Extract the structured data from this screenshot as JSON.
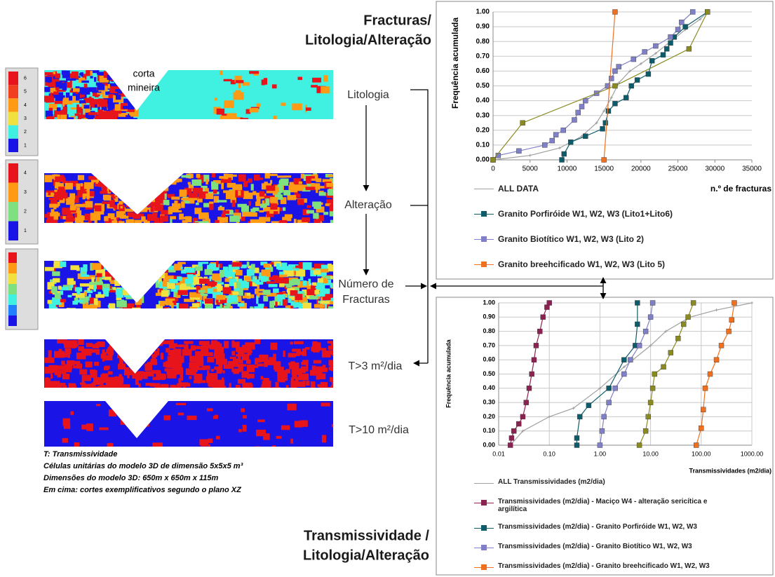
{
  "figure": {
    "title_top": [
      "Fracturas/",
      "Litologia/Alteração"
    ],
    "title_bottom": [
      "Transmissividade /",
      "Litologia/Alteração"
    ],
    "open_pit_label": [
      "corta",
      "mineira"
    ],
    "section_labels": [
      [
        "Litologia"
      ],
      [
        "Alteração"
      ],
      [
        "Número de",
        "Fracturas"
      ],
      [
        "T>3 m²/dia"
      ],
      [
        "T>10 m²/dia"
      ]
    ],
    "colorbar_labels": [
      [
        "6",
        "5",
        "4",
        "3",
        "2",
        "1"
      ],
      [
        "4",
        "3",
        "2",
        "1"
      ]
    ],
    "notes": [
      "T: Transmissividade",
      "Células unitárias do modelo 3D de dimensão 5x5x5 m³",
      "Dimensões do modelo 3D: 650m x 650m x 115m",
      "Em cima: cortes exemplificativos segundo o plano XZ"
    ]
  },
  "chart_data": [
    {
      "type": "line",
      "x_label": "n.º de fracturas",
      "y_label": "Frequência acumulada",
      "xlim": [
        0,
        35000
      ],
      "xticks": [
        0,
        5000,
        10000,
        15000,
        20000,
        25000,
        30000,
        35000
      ],
      "ylim": [
        0,
        1
      ],
      "yticks": [
        {
          "value": 0,
          "label": "0.00"
        },
        {
          "value": 0.1,
          "label": "0.10"
        },
        {
          "value": 0.2,
          "label": "0.20"
        },
        {
          "value": 0.3,
          "label": "0.30"
        },
        {
          "value": 0.4,
          "label": "0.40"
        },
        {
          "value": 0.5,
          "label": "0.50"
        },
        {
          "value": 0.6,
          "label": "0.60"
        },
        {
          "value": 0.7,
          "label": "0.70"
        },
        {
          "value": 0.8,
          "label": "0.80"
        },
        {
          "value": 0.9,
          "label": "0.90"
        },
        {
          "value": 1,
          "label": "1.00"
        }
      ],
      "grid": "y",
      "xscale": "linear",
      "series": [
        {
          "name": "ALL DATA",
          "color": "#a0a0a0",
          "marker": "plus",
          "x": [
            0,
            5000,
            9000,
            12000,
            14000,
            15000,
            16000,
            17000,
            18500,
            20000,
            22000,
            24000,
            26000,
            28000,
            29000
          ],
          "values": [
            0,
            0.03,
            0.08,
            0.16,
            0.25,
            0.33,
            0.42,
            0.52,
            0.6,
            0.65,
            0.72,
            0.8,
            0.88,
            0.95,
            1.0
          ]
        },
        {
          "name": "Granito Porfiróide W1, W2, W3 (Lito1+Lito6)",
          "color": "#0d5c6b",
          "marker": "square",
          "x": [
            9300,
            9600,
            10500,
            12500,
            14800,
            15200,
            15600,
            16500,
            18000,
            18700,
            19500,
            21000,
            21500,
            23000,
            23500,
            24000,
            24500,
            26000,
            29000
          ],
          "values": [
            0,
            0.04,
            0.12,
            0.16,
            0.21,
            0.25,
            0.33,
            0.38,
            0.42,
            0.5,
            0.54,
            0.58,
            0.67,
            0.71,
            0.75,
            0.79,
            0.83,
            0.9,
            1.0
          ]
        },
        {
          "name": "Granito Biotítico W1, W2, W3 (Lito 2)",
          "color": "#8080c8",
          "marker": "square",
          "x": [
            0,
            700,
            3500,
            7000,
            8000,
            8500,
            9500,
            11000,
            11500,
            12000,
            12500,
            14000,
            15500,
            16000,
            16500,
            17000,
            19000,
            20500,
            22000,
            24000,
            25000,
            25500,
            27000
          ],
          "values": [
            0,
            0.03,
            0.06,
            0.1,
            0.13,
            0.17,
            0.2,
            0.27,
            0.32,
            0.36,
            0.4,
            0.45,
            0.5,
            0.55,
            0.6,
            0.63,
            0.68,
            0.73,
            0.77,
            0.83,
            0.88,
            0.93,
            1.0
          ]
        },
        {
          "name": "Granito breehcificado W1, W2, W3 (Lito 5)",
          "color": "#f07020",
          "marker": "square",
          "x": [
            15000,
            16500
          ],
          "values": [
            0,
            1.0
          ]
        },
        {
          "color": "#8a8a20",
          "marker": "square",
          "x": [
            0,
            4000,
            16500,
            26500,
            29000
          ],
          "values": [
            0,
            0.25,
            0.5,
            0.75,
            1.0
          ]
        }
      ]
    },
    {
      "type": "line",
      "x_label": "Transmissividades (m2/dia)",
      "y_label": "Frequência acumulada",
      "xlim": [
        0.01,
        1000
      ],
      "xticks": [
        0.01,
        {
          "value": 0.1,
          "label": "0.10"
        },
        {
          "value": 1,
          "label": "1.00"
        },
        {
          "value": 10,
          "label": "10.00"
        },
        {
          "value": 100,
          "label": "100.00"
        },
        {
          "value": 1000,
          "label": "1000.00"
        }
      ],
      "ylim": [
        0,
        1
      ],
      "yticks": [
        {
          "value": 0,
          "label": "0.00"
        },
        {
          "value": 0.1,
          "label": "0.10"
        },
        {
          "value": 0.2,
          "label": "0.20"
        },
        {
          "value": 0.3,
          "label": "0.30"
        },
        {
          "value": 0.4,
          "label": "0.40"
        },
        {
          "value": 0.5,
          "label": "0.50"
        },
        {
          "value": 0.6,
          "label": "0.60"
        },
        {
          "value": 0.7,
          "label": "0.70"
        },
        {
          "value": 0.8,
          "label": "0.80"
        },
        {
          "value": 0.9,
          "label": "0.90"
        },
        {
          "value": 1,
          "label": "1.00"
        }
      ],
      "grid": "both",
      "xscale": "log",
      "series": [
        {
          "name": "ALL Transmissividades (m2/dia)",
          "color": "#a0a0a0",
          "marker": "plus",
          "x": [
            0.017,
            0.03,
            0.1,
            0.3,
            1,
            3,
            10,
            20,
            60,
            200,
            1000
          ],
          "values": [
            0,
            0.1,
            0.2,
            0.26,
            0.4,
            0.55,
            0.7,
            0.8,
            0.9,
            0.95,
            1.0
          ]
        },
        {
          "name": "Transmissividades (m2/dia) - Maciço W4 - alteração sericítica e argilítica",
          "color": "#8b2252",
          "marker": "square",
          "x": [
            0.017,
            0.018,
            0.02,
            0.025,
            0.03,
            0.035,
            0.04,
            0.045,
            0.05,
            0.055,
            0.065,
            0.075,
            0.09,
            0.1
          ],
          "values": [
            0,
            0.05,
            0.1,
            0.15,
            0.2,
            0.3,
            0.4,
            0.5,
            0.6,
            0.7,
            0.8,
            0.9,
            0.97,
            1.0
          ]
        },
        {
          "name": "Transmissividades (m2/dia) - Granito Porfiróide W1, W2, W3",
          "color": "#0d5c6b",
          "marker": "square",
          "x": [
            0.35,
            0.35,
            0.4,
            0.6,
            1.5,
            3,
            5,
            5.5,
            5.5
          ],
          "values": [
            0,
            0.05,
            0.2,
            0.28,
            0.4,
            0.6,
            0.7,
            0.85,
            1.0
          ]
        },
        {
          "name": "Transmissividades (m2/dia) - Granito Biotítico W1, W2, W3",
          "color": "#8080c8",
          "marker": "square",
          "x": [
            1,
            1.1,
            1.2,
            1.5,
            2,
            3,
            4,
            6,
            8,
            10,
            11
          ],
          "values": [
            0,
            0.1,
            0.2,
            0.3,
            0.4,
            0.5,
            0.6,
            0.7,
            0.8,
            0.9,
            1.0
          ]
        },
        {
          "name": "Transmissividades (m2/dia) - Granito breehcificado W1, W2, W3",
          "color": "#f07020",
          "marker": "square",
          "x": [
            80,
            100,
            110,
            120,
            150,
            200,
            250,
            350,
            400,
            450
          ],
          "values": [
            0,
            0.12,
            0.25,
            0.4,
            0.5,
            0.6,
            0.7,
            0.8,
            0.88,
            1.0
          ]
        },
        {
          "color": "#8a8a20",
          "marker": "square",
          "x": [
            6,
            8,
            9,
            10,
            11,
            12,
            18,
            25,
            35,
            45,
            55,
            70
          ],
          "values": [
            0,
            0.1,
            0.2,
            0.3,
            0.4,
            0.5,
            0.55,
            0.65,
            0.75,
            0.85,
            0.9,
            1.0
          ]
        }
      ]
    }
  ]
}
